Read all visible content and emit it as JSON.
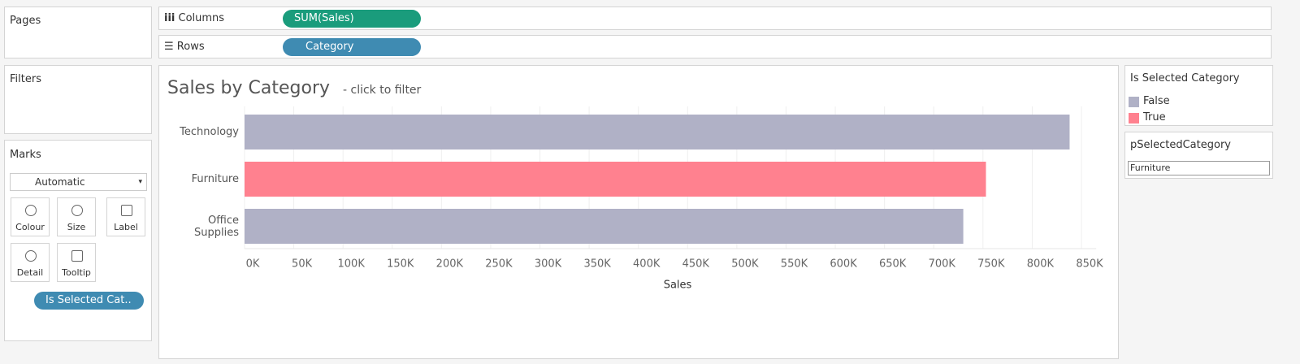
{
  "pages_label": "Pages",
  "filters_label": "Filters",
  "shelves": {
    "columns": {
      "label": "Columns",
      "pill": "SUM(Sales)"
    },
    "rows": {
      "label": "Rows",
      "pill": "Category"
    }
  },
  "marks": {
    "label": "Marks",
    "mark_type": "Automatic",
    "buttons": [
      "Colour",
      "Size",
      "Label",
      "Detail",
      "Tooltip"
    ],
    "color_pill": "Is Selected Cat.."
  },
  "parameter": {
    "title": "pSelectedCategory",
    "value": "Furniture"
  },
  "chart_data": {
    "type": "bar",
    "orientation": "horizontal",
    "title": "Sales by Category",
    "subtitle": "- click to filter",
    "xlabel": "Sales",
    "legend_title": "Is Selected Category",
    "categories": [
      "Technology",
      "Furniture",
      "Office Supplies"
    ],
    "series": [
      {
        "name": "False",
        "color": "#b0b1c6",
        "values": [
          838000,
          null,
          730000
        ]
      },
      {
        "name": "True",
        "color": "#ff818f",
        "values": [
          null,
          753000,
          null
        ]
      }
    ],
    "xlim": [
      0,
      865000
    ],
    "xticks": [
      {
        "value": 0,
        "label": "0K"
      },
      {
        "value": 50000,
        "label": "50K"
      },
      {
        "value": 100000,
        "label": "100K"
      },
      {
        "value": 150000,
        "label": "150K"
      },
      {
        "value": 200000,
        "label": "200K"
      },
      {
        "value": 250000,
        "label": "250K"
      },
      {
        "value": 300000,
        "label": "300K"
      },
      {
        "value": 350000,
        "label": "350K"
      },
      {
        "value": 400000,
        "label": "400K"
      },
      {
        "value": 450000,
        "label": "450K"
      },
      {
        "value": 500000,
        "label": "500K"
      },
      {
        "value": 550000,
        "label": "550K"
      },
      {
        "value": 600000,
        "label": "600K"
      },
      {
        "value": 650000,
        "label": "650K"
      },
      {
        "value": 700000,
        "label": "700K"
      },
      {
        "value": 750000,
        "label": "750K"
      },
      {
        "value": 800000,
        "label": "800K"
      },
      {
        "value": 850000,
        "label": "850K"
      }
    ],
    "grid": true
  }
}
